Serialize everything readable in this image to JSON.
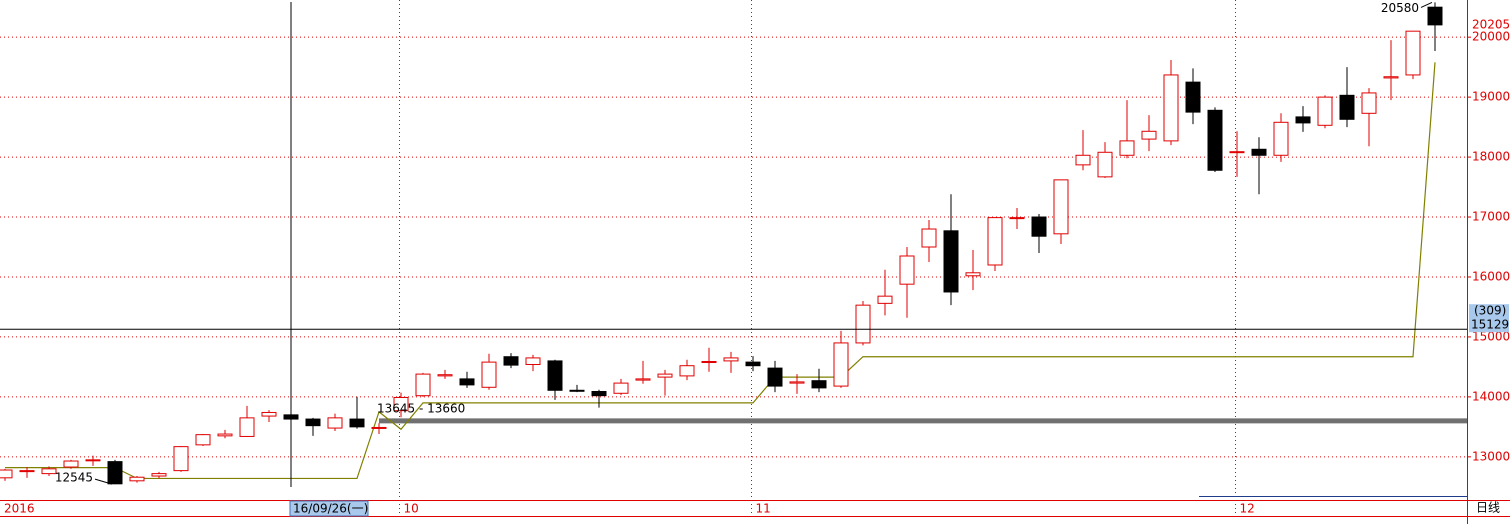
{
  "chart_data": {
    "type": "candlestick",
    "categories": [
      "2016",
      null,
      null,
      null,
      null,
      null,
      null,
      null,
      null,
      null,
      null,
      null,
      null,
      null,
      null,
      null,
      null,
      null,
      "10",
      null,
      null,
      null,
      null,
      null,
      null,
      null,
      null,
      null,
      null,
      null,
      null,
      null,
      null,
      null,
      "11",
      null,
      null,
      null,
      null,
      null,
      null,
      null,
      null,
      null,
      null,
      null,
      null,
      null,
      null,
      null,
      null,
      null,
      null,
      null,
      null,
      null,
      "12",
      null,
      null,
      null,
      null,
      null,
      null,
      null,
      null,
      null
    ],
    "open": [
      12650,
      12760,
      12720,
      12830,
      12940,
      12920,
      12600,
      12680,
      12770,
      13200,
      13350,
      13340,
      13680,
      13700,
      13630,
      13480,
      13630,
      13480,
      13770,
      14020,
      14350,
      14300,
      14160,
      14670,
      14540,
      14600,
      14110,
      14090,
      14060,
      14280,
      14330,
      14350,
      14580,
      14600,
      14580,
      14480,
      14230,
      14270,
      14180,
      14900,
      15560,
      15880,
      16500,
      16770,
      16020,
      16200,
      16980,
      17000,
      16720,
      17870,
      17670,
      18030,
      18300,
      18270,
      19250,
      18780,
      18080,
      18130,
      18030,
      18670,
      18530,
      19030,
      18730,
      19320,
      19370,
      20500
    ],
    "high": [
      12800,
      12830,
      12840,
      12950,
      13020,
      12950,
      12680,
      12750,
      13180,
      13380,
      13450,
      13850,
      13780,
      13740,
      13650,
      13720,
      14000,
      13560,
      14070,
      14400,
      14450,
      14420,
      14720,
      14730,
      14700,
      14620,
      14200,
      14120,
      14300,
      14600,
      14450,
      14620,
      14820,
      14750,
      14680,
      14600,
      14380,
      14470,
      15100,
      15600,
      16120,
      16500,
      16950,
      17380,
      16450,
      17000,
      17150,
      17050,
      17620,
      18450,
      18250,
      18950,
      18700,
      19620,
      19480,
      18830,
      18430,
      18330,
      18730,
      18850,
      19030,
      19500,
      19150,
      19950,
      20100,
      20580
    ],
    "low": [
      12600,
      12650,
      12680,
      12800,
      12850,
      12545,
      12570,
      12640,
      12750,
      13180,
      13310,
      13330,
      13580,
      13580,
      13350,
      13430,
      13470,
      13380,
      13660,
      14000,
      14300,
      14150,
      14120,
      14480,
      14430,
      13950,
      14080,
      13820,
      14030,
      14220,
      14020,
      14280,
      14420,
      14400,
      14430,
      14080,
      14050,
      14080,
      14150,
      14860,
      15360,
      15320,
      16250,
      15530,
      15780,
      16100,
      16800,
      16400,
      16550,
      17780,
      17650,
      17980,
      18100,
      18200,
      18550,
      17750,
      17670,
      17380,
      17920,
      18420,
      18480,
      18500,
      18180,
      18950,
      19300,
      19770
    ],
    "close": [
      12780,
      12770,
      12800,
      12930,
      12950,
      12550,
      12660,
      12720,
      13170,
      13370,
      13380,
      13650,
      13740,
      13630,
      13520,
      13650,
      13500,
      13490,
      13990,
      14380,
      14370,
      14200,
      14580,
      14530,
      14650,
      14110,
      14100,
      14020,
      14230,
      14300,
      14380,
      14520,
      14590,
      14650,
      14520,
      14180,
      14250,
      14150,
      14900,
      15530,
      15680,
      16350,
      16800,
      15750,
      16070,
      16990,
      16990,
      16680,
      17620,
      18030,
      18080,
      18270,
      18430,
      19370,
      18750,
      17780,
      18090,
      18030,
      18580,
      18570,
      19000,
      18630,
      19070,
      19340,
      20100,
      20205
    ],
    "up_color": "#e00000",
    "down_color": "#000000",
    "line": {
      "color": "#808000",
      "values": [
        12820,
        12820,
        12820,
        12820,
        12820,
        12820,
        12640,
        12640,
        12640,
        12640,
        12640,
        12640,
        12640,
        12640,
        12640,
        12640,
        12640,
        13750,
        13460,
        13900,
        13900,
        13900,
        13900,
        13900,
        13900,
        13900,
        13900,
        13900,
        13900,
        13900,
        13900,
        13900,
        13900,
        13900,
        13900,
        14330,
        14330,
        14330,
        14330,
        14670,
        14670,
        14670,
        14670,
        14670,
        14670,
        14670,
        14670,
        14670,
        14670,
        14670,
        14670,
        14670,
        14670,
        14670,
        14670,
        14670,
        14670,
        14670,
        14670,
        14670,
        14670,
        14670,
        14670,
        14670,
        14670,
        19580
      ]
    },
    "support_line": {
      "value": 13600,
      "color": "#707070"
    },
    "ylim": [
      12280,
      20620
    ],
    "yticks": [
      13000,
      14000,
      15000,
      16000,
      17000,
      18000,
      19000,
      20000
    ],
    "grid": true,
    "axis_color": "#e00000",
    "max_label": {
      "value": 20580,
      "label": "20580",
      "index": 65
    },
    "min_label": {
      "value": 12545,
      "label": "12545",
      "index": 5
    },
    "gap_label": "13645 - 13660",
    "last_price": {
      "value": 20205,
      "label": "20205"
    },
    "crosshair": {
      "value": 15129,
      "label": "15129",
      "count_label": "(309)",
      "index": 13,
      "date_label": "16/09/26(一)"
    },
    "period_label": "日线"
  }
}
